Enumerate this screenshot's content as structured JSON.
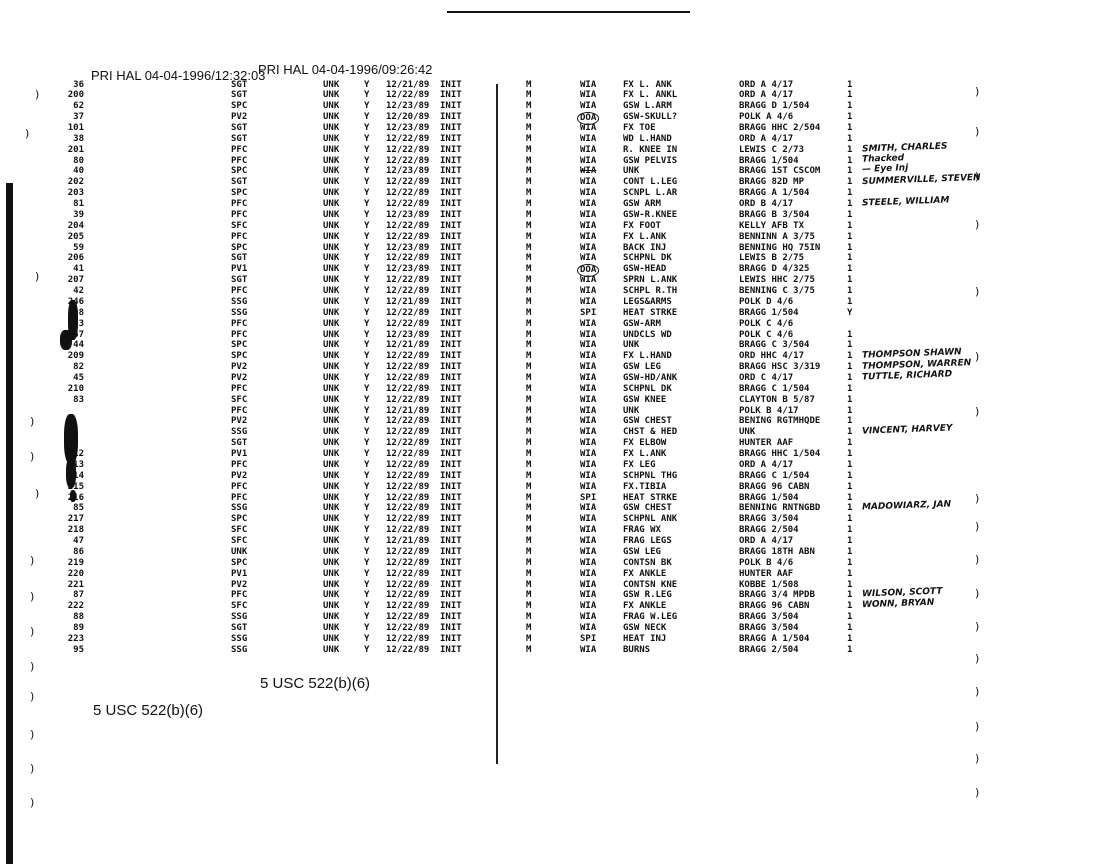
{
  "stamps": {
    "print_header_1": "PRI HAL 04-04-1996/12:32:03",
    "print_header_2": "PRI HAL 04-04-1996/09:26:42",
    "redaction_1": "5 USC 522(b)(6)",
    "redaction_2": "5 USC 522(b)(6)"
  },
  "rows": [
    {
      "num": "36",
      "rank": "SGT",
      "unk": "UNK",
      "y": "Y",
      "date": "12/21/89",
      "status": "INIT",
      "m": "M",
      "type": "WIA",
      "injury": "FX L. ANK",
      "unit": "ORD A 4/17",
      "count": "1"
    },
    {
      "num": "200",
      "rank": "SGT",
      "unk": "UNK",
      "y": "Y",
      "date": "12/22/89",
      "status": "INIT",
      "m": "M",
      "type": "WIA",
      "injury": "FX L. ANKL",
      "unit": "ORD A 4/17",
      "count": "1"
    },
    {
      "num": "62",
      "rank": "SPC",
      "unk": "UNK",
      "y": "Y",
      "date": "12/23/89",
      "status": "INIT",
      "m": "M",
      "type": "WIA",
      "injury": "GSW L.ARM",
      "unit": "BRAGG D 1/504",
      "count": "1"
    },
    {
      "num": "37",
      "rank": "PV2",
      "unk": "UNK",
      "y": "Y",
      "date": "12/20/89",
      "status": "INIT",
      "m": "M",
      "type": "DOA",
      "injury": "GSW-SKULL?",
      "unit": "POLK A 4/6",
      "count": "1"
    },
    {
      "num": "101",
      "rank": "SGT",
      "unk": "UNK",
      "y": "Y",
      "date": "12/23/89",
      "status": "INIT",
      "m": "M",
      "type": "WIA",
      "injury": "FX TOE",
      "unit": "BRAGG HHC 2/504",
      "count": "1"
    },
    {
      "num": "38",
      "rank": "SGT",
      "unk": "UNK",
      "y": "Y",
      "date": "12/22/89",
      "status": "INIT",
      "m": "M",
      "type": "WIA",
      "injury": "WD L.HAND",
      "unit": "ORD A 4/17",
      "count": "1"
    },
    {
      "num": "201",
      "rank": "PFC",
      "unk": "UNK",
      "y": "Y",
      "date": "12/22/89",
      "status": "INIT",
      "m": "M",
      "type": "WIA",
      "injury": "R. KNEE IN",
      "unit": "LEWIS C 2/73",
      "count": "1"
    },
    {
      "num": "80",
      "rank": "PFC",
      "unk": "UNK",
      "y": "Y",
      "date": "12/22/89",
      "status": "INIT",
      "m": "M",
      "type": "WIA",
      "injury": "GSW PELVIS",
      "unit": "BRAGG 1/504",
      "count": "1"
    },
    {
      "num": "40",
      "rank": "SPC",
      "unk": "UNK",
      "y": "Y",
      "date": "12/23/89",
      "status": "INIT",
      "m": "M",
      "type": "WIA",
      "injury": "UNK",
      "unit": "BRAGG 1ST CSCOM",
      "count": "1"
    },
    {
      "num": "202",
      "rank": "SGT",
      "unk": "UNK",
      "y": "Y",
      "date": "12/22/89",
      "status": "INIT",
      "m": "M",
      "type": "WIA",
      "injury": "CONT L.LEG",
      "unit": "BRAGG 82D MP",
      "count": "1"
    },
    {
      "num": "203",
      "rank": "SPC",
      "unk": "UNK",
      "y": "Y",
      "date": "12/22/89",
      "status": "INIT",
      "m": "M",
      "type": "WIA",
      "injury": "SCNPL L.AR",
      "unit": "BRAGG A 1/504",
      "count": "1"
    },
    {
      "num": "81",
      "rank": "PFC",
      "unk": "UNK",
      "y": "Y",
      "date": "12/22/89",
      "status": "INIT",
      "m": "M",
      "type": "WIA",
      "injury": "GSW ARM",
      "unit": "ORD B 4/17",
      "count": "1"
    },
    {
      "num": "39",
      "rank": "PFC",
      "unk": "UNK",
      "y": "Y",
      "date": "12/23/89",
      "status": "INIT",
      "m": "M",
      "type": "WIA",
      "injury": "GSW-R.KNEE",
      "unit": "BRAGG B 3/504",
      "count": "1"
    },
    {
      "num": "204",
      "rank": "SFC",
      "unk": "UNK",
      "y": "Y",
      "date": "12/22/89",
      "status": "INIT",
      "m": "M",
      "type": "WIA",
      "injury": "FX FOOT",
      "unit": "KELLY AFB TX",
      "count": "1"
    },
    {
      "num": "205",
      "rank": "PFC",
      "unk": "UNK",
      "y": "Y",
      "date": "12/22/89",
      "status": "INIT",
      "m": "M",
      "type": "WIA",
      "injury": "FX L.ANK",
      "unit": "BENNINN A 3/75",
      "count": "1"
    },
    {
      "num": "59",
      "rank": "SPC",
      "unk": "UNK",
      "y": "Y",
      "date": "12/23/89",
      "status": "INIT",
      "m": "M",
      "type": "WIA",
      "injury": "BACK INJ",
      "unit": "BENNING HQ 75IN",
      "count": "1"
    },
    {
      "num": "206",
      "rank": "SGT",
      "unk": "UNK",
      "y": "Y",
      "date": "12/22/89",
      "status": "INIT",
      "m": "M",
      "type": "WIA",
      "injury": "SCHPNL DK",
      "unit": "LEWIS B 2/75",
      "count": "1"
    },
    {
      "num": "41",
      "rank": "PV1",
      "unk": "UNK",
      "y": "Y",
      "date": "12/23/89",
      "status": "INIT",
      "m": "M",
      "type": "DOA",
      "injury": "GSW-HEAD",
      "unit": "BRAGG D 4/325",
      "count": "1"
    },
    {
      "num": "207",
      "rank": "SGT",
      "unk": "UNK",
      "y": "Y",
      "date": "12/22/89",
      "status": "INIT",
      "m": "M",
      "type": "WIA",
      "injury": "SPRN L.ANK",
      "unit": "LEWIS HHC 2/75",
      "count": "1"
    },
    {
      "num": "42",
      "rank": "PFC",
      "unk": "UNK",
      "y": "Y",
      "date": "12/22/89",
      "status": "INIT",
      "m": "M",
      "type": "WIA",
      "injury": "SCHPL R.TH",
      "unit": "BENNING C 3/75",
      "count": "1"
    },
    {
      "num": "246",
      "rank": "SSG",
      "unk": "UNK",
      "y": "Y",
      "date": "12/21/89",
      "status": "INIT",
      "m": "M",
      "type": "WIA",
      "injury": "LEGS&ARMS",
      "unit": "POLK D 4/6",
      "count": "1"
    },
    {
      "num": "208",
      "rank": "SSG",
      "unk": "UNK",
      "y": "Y",
      "date": "12/22/89",
      "status": "INIT",
      "m": "M",
      "type": "SPI",
      "injury": "HEAT STRKE",
      "unit": "BRAGG 1/504",
      "count": "Y"
    },
    {
      "num": "43",
      "rank": "PFC",
      "unk": "UNK",
      "y": "Y",
      "date": "12/22/89",
      "status": "INIT",
      "m": "M",
      "type": "WIA",
      "injury": "GSW-ARM",
      "unit": "POLK C 4/6",
      "count": ""
    },
    {
      "num": "67",
      "rank": "PFC",
      "unk": "UNK",
      "y": "Y",
      "date": "12/23/89",
      "status": "INIT",
      "m": "M",
      "type": "WIA",
      "injury": "UNDCLS WD",
      "unit": "POLK C 4/6",
      "count": "1"
    },
    {
      "num": "44",
      "rank": "SPC",
      "unk": "UNK",
      "y": "Y",
      "date": "12/21/89",
      "status": "INIT",
      "m": "M",
      "type": "WIA",
      "injury": "UNK",
      "unit": "BRAGG C 3/504",
      "count": "1"
    },
    {
      "num": "209",
      "rank": "SPC",
      "unk": "UNK",
      "y": "Y",
      "date": "12/22/89",
      "status": "INIT",
      "m": "M",
      "type": "WIA",
      "injury": "FX L.HAND",
      "unit": "ORD HHC 4/17",
      "count": "1"
    },
    {
      "num": "82",
      "rank": "PV2",
      "unk": "UNK",
      "y": "Y",
      "date": "12/22/89",
      "status": "INIT",
      "m": "M",
      "type": "WIA",
      "injury": "GSW LEG",
      "unit": "BRAGG HSC 3/319",
      "count": "1"
    },
    {
      "num": "45",
      "rank": "PV2",
      "unk": "UNK",
      "y": "Y",
      "date": "12/22/89",
      "status": "INIT",
      "m": "M",
      "type": "WIA",
      "injury": "GSW-HD/ANK",
      "unit": "ORD C 4/17",
      "count": "1"
    },
    {
      "num": "210",
      "rank": "PFC",
      "unk": "UNK",
      "y": "Y",
      "date": "12/22/89",
      "status": "INIT",
      "m": "M",
      "type": "WIA",
      "injury": "SCHPNL DK",
      "unit": "BRAGG C 1/504",
      "count": "1"
    },
    {
      "num": "83",
      "rank": "SFC",
      "unk": "UNK",
      "y": "Y",
      "date": "12/22/89",
      "status": "INIT",
      "m": "M",
      "type": "WIA",
      "injury": "GSW KNEE",
      "unit": "CLAYTON B 5/87",
      "count": "1"
    },
    {
      "num": "",
      "rank": "PFC",
      "unk": "UNK",
      "y": "Y",
      "date": "12/21/89",
      "status": "INIT",
      "m": "M",
      "type": "WIA",
      "injury": "UNK",
      "unit": "POLK B 4/17",
      "count": "1"
    },
    {
      "num": "",
      "rank": "PV2",
      "unk": "UNK",
      "y": "Y",
      "date": "12/22/89",
      "status": "INIT",
      "m": "M",
      "type": "WIA",
      "injury": "GSW CHEST",
      "unit": "BENING RGTMHQDE",
      "count": "1"
    },
    {
      "num": "",
      "rank": "SSG",
      "unk": "UNK",
      "y": "Y",
      "date": "12/22/89",
      "status": "INIT",
      "m": "M",
      "type": "WIA",
      "injury": "CHST & HED",
      "unit": "UNK",
      "count": "1"
    },
    {
      "num": "",
      "rank": "SGT",
      "unk": "UNK",
      "y": "Y",
      "date": "12/22/89",
      "status": "INIT",
      "m": "M",
      "type": "WIA",
      "injury": "FX ELBOW",
      "unit": "HUNTER AAF",
      "count": "1"
    },
    {
      "num": "212",
      "rank": "PV1",
      "unk": "UNK",
      "y": "Y",
      "date": "12/22/89",
      "status": "INIT",
      "m": "M",
      "type": "WIA",
      "injury": "FX L.ANK",
      "unit": "BRAGG HHC 1/504",
      "count": "1"
    },
    {
      "num": "213",
      "rank": "PFC",
      "unk": "UNK",
      "y": "Y",
      "date": "12/22/89",
      "status": "INIT",
      "m": "M",
      "type": "WIA",
      "injury": "FX LEG",
      "unit": "ORD A 4/17",
      "count": "1"
    },
    {
      "num": "214",
      "rank": "PV2",
      "unk": "UNK",
      "y": "Y",
      "date": "12/22/89",
      "status": "INIT",
      "m": "M",
      "type": "WIA",
      "injury": "SCHPNL THG",
      "unit": "BRAGG C 1/504",
      "count": "1"
    },
    {
      "num": "215",
      "rank": "PFC",
      "unk": "UNK",
      "y": "Y",
      "date": "12/22/89",
      "status": "INIT",
      "m": "M",
      "type": "WIA",
      "injury": "FX.TIBIA",
      "unit": "BRAGG 96 CABN",
      "count": "1"
    },
    {
      "num": "216",
      "rank": "PFC",
      "unk": "UNK",
      "y": "Y",
      "date": "12/22/89",
      "status": "INIT",
      "m": "M",
      "type": "SPI",
      "injury": "HEAT STRKE",
      "unit": "BRAGG 1/504",
      "count": "1"
    },
    {
      "num": "85",
      "rank": "SSG",
      "unk": "UNK",
      "y": "Y",
      "date": "12/22/89",
      "status": "INIT",
      "m": "M",
      "type": "WIA",
      "injury": "GSW CHEST",
      "unit": "BENNING RNTNGBD",
      "count": "1"
    },
    {
      "num": "217",
      "rank": "SPC",
      "unk": "UNK",
      "y": "Y",
      "date": "12/22/89",
      "status": "INIT",
      "m": "M",
      "type": "WIA",
      "injury": "SCHPNL ANK",
      "unit": "BRAGG 3/504",
      "count": "1"
    },
    {
      "num": "218",
      "rank": "SFC",
      "unk": "UNK",
      "y": "Y",
      "date": "12/22/89",
      "status": "INIT",
      "m": "M",
      "type": "WIA",
      "injury": "FRAG WX",
      "unit": "BRAGG 2/504",
      "count": "1"
    },
    {
      "num": "47",
      "rank": "SFC",
      "unk": "UNK",
      "y": "Y",
      "date": "12/21/89",
      "status": "INIT",
      "m": "M",
      "type": "WIA",
      "injury": "FRAG LEGS",
      "unit": "ORD A 4/17",
      "count": "1"
    },
    {
      "num": "86",
      "rank": "UNK",
      "unk": "UNK",
      "y": "Y",
      "date": "12/22/89",
      "status": "INIT",
      "m": "M",
      "type": "WIA",
      "injury": "GSW LEG",
      "unit": "BRAGG 18TH ABN",
      "count": "1"
    },
    {
      "num": "219",
      "rank": "SPC",
      "unk": "UNK",
      "y": "Y",
      "date": "12/22/89",
      "status": "INIT",
      "m": "M",
      "type": "WIA",
      "injury": "CONTSN BK",
      "unit": "POLK B 4/6",
      "count": "1"
    },
    {
      "num": "220",
      "rank": "PV1",
      "unk": "UNK",
      "y": "Y",
      "date": "12/22/89",
      "status": "INIT",
      "m": "M",
      "type": "WIA",
      "injury": "FX ANKLE",
      "unit": "HUNTER AAF",
      "count": "1"
    },
    {
      "num": "221",
      "rank": "PV2",
      "unk": "UNK",
      "y": "Y",
      "date": "12/22/89",
      "status": "INIT",
      "m": "M",
      "type": "WIA",
      "injury": "CONTSN KNE",
      "unit": "KOBBE 1/508",
      "count": "1"
    },
    {
      "num": "87",
      "rank": "PFC",
      "unk": "UNK",
      "y": "Y",
      "date": "12/22/89",
      "status": "INIT",
      "m": "M",
      "type": "WIA",
      "injury": "GSW R.LEG",
      "unit": "BRAGG 3/4 MPDB",
      "count": "1"
    },
    {
      "num": "222",
      "rank": "SFC",
      "unk": "UNK",
      "y": "Y",
      "date": "12/22/89",
      "status": "INIT",
      "m": "M",
      "type": "WIA",
      "injury": "FX ANKLE",
      "unit": "BRAGG 96 CABN",
      "count": "1"
    },
    {
      "num": "88",
      "rank": "SSG",
      "unk": "UNK",
      "y": "Y",
      "date": "12/22/89",
      "status": "INIT",
      "m": "M",
      "type": "WIA",
      "injury": "FRAG W.LEG",
      "unit": "BRAGG 3/504",
      "count": "1"
    },
    {
      "num": "89",
      "rank": "SGT",
      "unk": "UNK",
      "y": "Y",
      "date": "12/22/89",
      "status": "INIT",
      "m": "M",
      "type": "WIA",
      "injury": "GSW NECK",
      "unit": "BRAGG 3/504",
      "count": "1"
    },
    {
      "num": "223",
      "rank": "SSG",
      "unk": "UNK",
      "y": "Y",
      "date": "12/22/89",
      "status": "INIT",
      "m": "M",
      "type": "SPI",
      "injury": "HEAT INJ",
      "unit": "BRAGG A 1/504",
      "count": "1"
    },
    {
      "num": "95",
      "rank": "SSG",
      "unk": "UNK",
      "y": "Y",
      "date": "12/22/89",
      "status": "INIT",
      "m": "M",
      "type": "WIA",
      "injury": "BURNS",
      "unit": "BRAGG 2/504",
      "count": "1"
    }
  ],
  "handwritten_notes": [
    {
      "row": 6,
      "text": "SMITH, CHARLES"
    },
    {
      "row": 7,
      "text": "Thacked"
    },
    {
      "row": 8,
      "text": "— Eye Inj"
    },
    {
      "row": 9,
      "text": "SUMMERVILLE, STEVEN"
    },
    {
      "row": 11,
      "text": "STEELE, WILLIAM"
    },
    {
      "row": 25,
      "text": "THOMPSON SHAWN"
    },
    {
      "row": 26,
      "text": "THOMPSON, WARREN"
    },
    {
      "row": 27,
      "text": "TUTTLE, RICHARD"
    },
    {
      "row": 32,
      "text": "VINCENT, HARVEY"
    },
    {
      "row": 39,
      "text": "MADOWIARZ, JAN"
    },
    {
      "row": 47,
      "text": "WILSON, SCOTT"
    },
    {
      "row": 48,
      "text": "WONN, BRYAN"
    }
  ],
  "marks": {
    "circled_rows": [
      3,
      17
    ],
    "struck_type_rows": [
      8
    ]
  }
}
